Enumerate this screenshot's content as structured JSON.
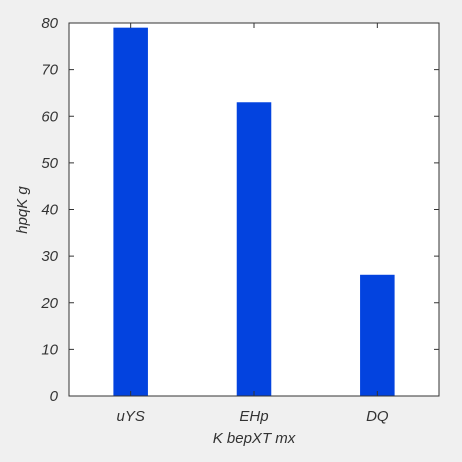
{
  "chart_data": {
    "type": "bar",
    "categories": [
      "uYS",
      "EHp",
      "DQ"
    ],
    "values": [
      79,
      63,
      26
    ],
    "xlabel": "K bepXT mx",
    "ylabel": "hpqK g",
    "ylim": [
      0,
      80
    ],
    "yticks": [
      0,
      10,
      20,
      30,
      40,
      50,
      60,
      70,
      80
    ],
    "bar_color": "#0343df",
    "grid": false
  }
}
